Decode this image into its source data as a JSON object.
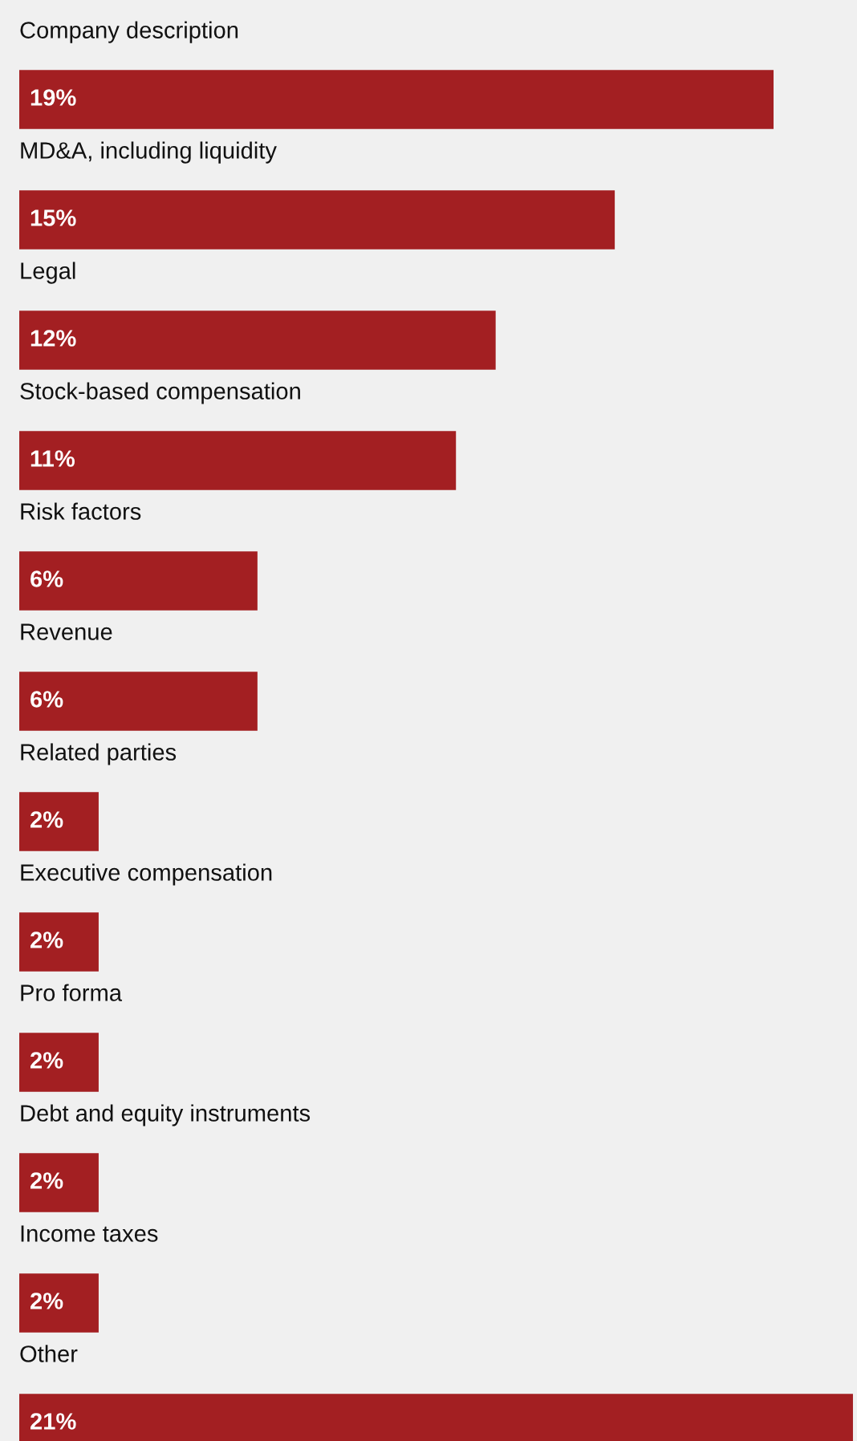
{
  "chart_data": {
    "type": "bar",
    "orientation": "horizontal",
    "categories": [
      "Company description",
      "MD&A, including liquidity",
      "Legal",
      "Stock-based compensation",
      "Risk factors",
      "Revenue",
      "Related parties",
      "Executive compensation",
      "Pro forma",
      "Debt and equity instruments",
      "Income taxes",
      "Other"
    ],
    "values": [
      19,
      15,
      12,
      11,
      6,
      6,
      2,
      2,
      2,
      2,
      2,
      21
    ],
    "value_labels": [
      "19%",
      "15%",
      "12%",
      "11%",
      "6%",
      "6%",
      "2%",
      "2%",
      "2%",
      "2%",
      "2%",
      "21%"
    ],
    "color": "#a31f22"
  }
}
